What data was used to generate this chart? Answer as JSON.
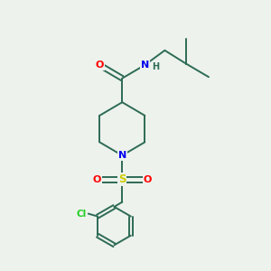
{
  "background_color": "#edf2ed",
  "bond_color": "#2d6b55",
  "atom_colors": {
    "O": "#ff0000",
    "N": "#0000ee",
    "S": "#cccc00",
    "Cl": "#22cc22",
    "H": "#2d6b55",
    "C": "#2d6b55"
  },
  "figsize": [
    3.0,
    3.0
  ],
  "dpi": 100,
  "lw": 1.4
}
